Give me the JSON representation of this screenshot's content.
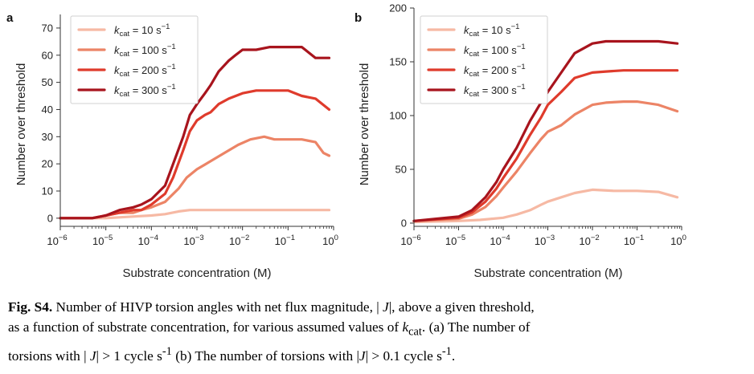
{
  "chart_data": [
    {
      "type": "line",
      "panel_label": "a",
      "xlabel": "Substrate concentration (M)",
      "ylabel": "Number over threshold",
      "x_scale": "log",
      "xlim": [
        1e-06,
        1
      ],
      "ylim": [
        -3,
        75
      ],
      "yticks": [
        0,
        10,
        20,
        30,
        40,
        50,
        60,
        70
      ],
      "x_ticks": [
        {
          "value": 1e-06,
          "exp": "−6"
        },
        {
          "value": 1e-05,
          "exp": "−5"
        },
        {
          "value": 0.0001,
          "exp": "−4"
        },
        {
          "value": 0.001,
          "exp": "−3"
        },
        {
          "value": 0.01,
          "exp": "−2"
        },
        {
          "value": 0.1,
          "exp": "−1"
        },
        {
          "value": 1,
          "exp": "0"
        }
      ],
      "legend_position": "top-left",
      "series": [
        {
          "name_kcat": "10 s",
          "name_exp": "−1",
          "color": "#f6b9a4",
          "x": [
            1e-06,
            1e-05,
            3e-05,
            0.0001,
            0.0002,
            0.0004,
            0.0007,
            0.001,
            0.01,
            0.1,
            0.8
          ],
          "y": [
            0,
            0,
            0.5,
            1,
            1.5,
            2.5,
            3,
            3,
            3,
            3,
            3
          ]
        },
        {
          "name_kcat": "100 s",
          "name_exp": "−1",
          "color": "#ec8466",
          "x": [
            1e-06,
            5e-06,
            1e-05,
            2e-05,
            4e-05,
            6e-05,
            0.0001,
            0.0002,
            0.0004,
            0.0006,
            0.001,
            0.002,
            0.004,
            0.008,
            0.015,
            0.03,
            0.05,
            0.1,
            0.2,
            0.4,
            0.6,
            0.8
          ],
          "y": [
            0,
            0,
            1,
            2,
            2,
            3,
            4,
            6,
            11,
            15,
            18,
            21,
            24,
            27,
            29,
            30,
            29,
            29,
            29,
            28,
            24,
            23
          ]
        },
        {
          "name_kcat": "200 s",
          "name_exp": "−1",
          "color": "#df3b2c",
          "x": [
            1e-06,
            5e-06,
            1e-05,
            2e-05,
            4e-05,
            6e-05,
            0.0001,
            0.0002,
            0.0003,
            0.0005,
            0.0007,
            0.001,
            0.0015,
            0.002,
            0.003,
            0.005,
            0.01,
            0.02,
            0.04,
            0.1,
            0.2,
            0.4,
            0.8
          ],
          "y": [
            0,
            0,
            1,
            2,
            3,
            3,
            5,
            9,
            15,
            25,
            32,
            36,
            38,
            39,
            42,
            44,
            46,
            47,
            47,
            47,
            45,
            44,
            40
          ]
        },
        {
          "name_kcat": "300 s",
          "name_exp": "−1",
          "color": "#a8141d",
          "x": [
            1e-06,
            5e-06,
            1e-05,
            2e-05,
            4e-05,
            6e-05,
            0.0001,
            0.0002,
            0.0003,
            0.0005,
            0.0007,
            0.001,
            0.0015,
            0.002,
            0.003,
            0.005,
            0.007,
            0.01,
            0.02,
            0.04,
            0.1,
            0.2,
            0.4,
            0.8
          ],
          "y": [
            0,
            0,
            1,
            3,
            4,
            5,
            7,
            12,
            20,
            30,
            38,
            42,
            46,
            49,
            54,
            58,
            60,
            62,
            62,
            63,
            63,
            63,
            59,
            59
          ]
        }
      ]
    },
    {
      "type": "line",
      "panel_label": "b",
      "xlabel": "Substrate concentration (M)",
      "ylabel": "Number over threshold",
      "x_scale": "log",
      "xlim": [
        1e-06,
        1
      ],
      "ylim": [
        -3,
        200
      ],
      "yticks": [
        0,
        50,
        100,
        150,
        200
      ],
      "x_ticks": [
        {
          "value": 1e-06,
          "exp": "−6"
        },
        {
          "value": 1e-05,
          "exp": "−5"
        },
        {
          "value": 0.0001,
          "exp": "−4"
        },
        {
          "value": 0.001,
          "exp": "−3"
        },
        {
          "value": 0.01,
          "exp": "−2"
        },
        {
          "value": 0.1,
          "exp": "−1"
        },
        {
          "value": 1,
          "exp": "0"
        }
      ],
      "legend_position": "top-left",
      "series": [
        {
          "name_kcat": "10 s",
          "name_exp": "−1",
          "color": "#f6b9a4",
          "x": [
            1e-06,
            1e-05,
            3e-05,
            0.0001,
            0.0002,
            0.0004,
            0.0007,
            0.001,
            0.002,
            0.004,
            0.01,
            0.03,
            0.1,
            0.3,
            0.8
          ],
          "y": [
            1,
            2,
            3,
            5,
            8,
            12,
            17,
            20,
            24,
            28,
            31,
            30,
            30,
            29,
            24
          ]
        },
        {
          "name_kcat": "100 s",
          "name_exp": "−1",
          "color": "#ec8466",
          "x": [
            1e-06,
            1e-05,
            2e-05,
            4e-05,
            7e-05,
            0.0001,
            0.0002,
            0.0004,
            0.0007,
            0.001,
            0.002,
            0.004,
            0.01,
            0.02,
            0.05,
            0.1,
            0.3,
            0.8
          ],
          "y": [
            2,
            4,
            8,
            15,
            25,
            33,
            48,
            65,
            78,
            85,
            91,
            101,
            110,
            112,
            113,
            113,
            110,
            104
          ]
        },
        {
          "name_kcat": "200 s",
          "name_exp": "−1",
          "color": "#df3b2c",
          "x": [
            1e-06,
            1e-05,
            2e-05,
            4e-05,
            7e-05,
            0.0001,
            0.0002,
            0.0004,
            0.0007,
            0.001,
            0.002,
            0.004,
            0.01,
            0.02,
            0.05,
            0.1,
            0.3,
            0.8
          ],
          "y": [
            2,
            5,
            10,
            20,
            32,
            42,
            60,
            82,
            98,
            110,
            122,
            135,
            140,
            141,
            142,
            142,
            142,
            142
          ]
        },
        {
          "name_kcat": "300 s",
          "name_exp": "−1",
          "color": "#a8141d",
          "x": [
            1e-06,
            1e-05,
            2e-05,
            4e-05,
            7e-05,
            0.0001,
            0.0002,
            0.0004,
            0.0007,
            0.001,
            0.002,
            0.004,
            0.01,
            0.02,
            0.05,
            0.1,
            0.3,
            0.8
          ],
          "y": [
            2,
            6,
            12,
            24,
            38,
            50,
            70,
            95,
            112,
            122,
            140,
            158,
            167,
            169,
            169,
            169,
            169,
            167
          ]
        }
      ]
    }
  ],
  "caption": {
    "label": "Fig. S4.",
    "text_1": "Number of HIVP torsion angles with net flux magnitude, | ",
    "J1": "J",
    "text_2": "|, above a given threshold,",
    "text_3": "as a function of substrate concentration, for various assumed values of ",
    "k": "k",
    "k_sub": "cat",
    "text_4": ". (a) The number of",
    "text_5": "torsions with | ",
    "J2": "J",
    "text_6": "| > 1 cycle s",
    "sup1": "-1",
    "text_7": " (b) The number of torsions with |",
    "J3": "J",
    "text_8": "| > 0.1 cycle s",
    "sup2": "-1",
    "text_9": "."
  }
}
